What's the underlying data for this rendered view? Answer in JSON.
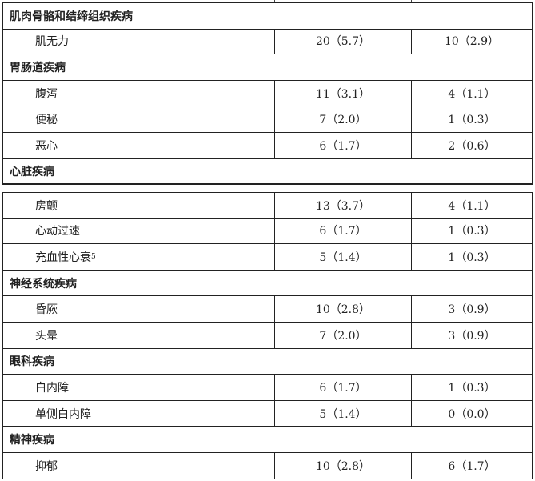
{
  "blocks": [
    {
      "rows": [
        {
          "type": "section",
          "label": "肌肉骨骼和结缔组织疾病"
        },
        {
          "type": "item",
          "label": "肌无力",
          "col2": "20（5.7）",
          "col3": "10（2.9）"
        },
        {
          "type": "section",
          "label": "胃肠道疾病"
        },
        {
          "type": "item",
          "label": "腹泻",
          "col2": "11（3.1）",
          "col3": "4（1.1）"
        },
        {
          "type": "item",
          "label": "便秘",
          "col2": "7（2.0）",
          "col3": "1（0.3）"
        },
        {
          "type": "item",
          "label": "恶心",
          "col2": "6（1.7）",
          "col3": "2（0.6）"
        },
        {
          "type": "section",
          "label": "心脏疾病"
        }
      ]
    },
    {
      "rows": [
        {
          "type": "item",
          "label": "房颤",
          "col2": "13（3.7）",
          "col3": "4（1.1）"
        },
        {
          "type": "item",
          "label": "心动过速",
          "col2": "6（1.7）",
          "col3": "1（0.3）"
        },
        {
          "type": "item",
          "label": "充血性心衰",
          "sup": "5",
          "col2": "5（1.4）",
          "col3": "1（0.3）"
        },
        {
          "type": "section",
          "label": "神经系统疾病"
        },
        {
          "type": "item",
          "label": "昏厥",
          "col2": "10（2.8）",
          "col3": "3（0.9）"
        },
        {
          "type": "item",
          "label": "头晕",
          "col2": "7（2.0）",
          "col3": "3（0.9）"
        },
        {
          "type": "section",
          "label": "眼科疾病"
        },
        {
          "type": "item",
          "label": "白内障",
          "col2": "6（1.7）",
          "col3": "1（0.3）"
        },
        {
          "type": "item",
          "label": "单侧白内障",
          "col2": "5（1.4）",
          "col3": "0（0.0）"
        },
        {
          "type": "section",
          "label": "精神疾病"
        },
        {
          "type": "item",
          "label": "抑郁",
          "col2": "10（2.8）",
          "col3": "6（1.7）"
        }
      ]
    }
  ]
}
